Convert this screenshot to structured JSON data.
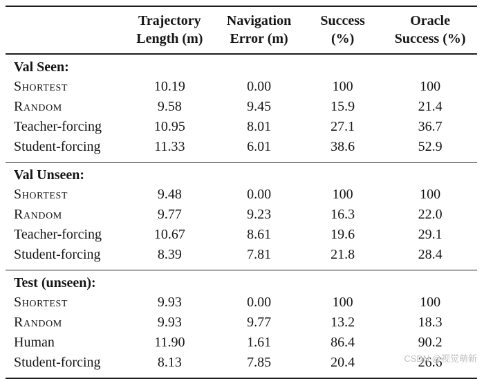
{
  "watermark": "CSDN @视觉萌新",
  "colors": {
    "background": "#ffffff",
    "text": "#151515",
    "rule": "#1c1c1c",
    "watermark": "#bfbfbf"
  },
  "table": {
    "columns": [
      {
        "line1": "Trajectory",
        "line2": "Length (m)"
      },
      {
        "line1": "Navigation",
        "line2": "Error (m)"
      },
      {
        "line1": "Success",
        "line2": "(%)"
      },
      {
        "line1": "Oracle",
        "line2": "Success (%)"
      }
    ],
    "sections": [
      {
        "title": "Val Seen:",
        "rows": [
          {
            "label": "Shortest",
            "smallcaps": true,
            "values": [
              "10.19",
              "0.00",
              "100",
              "100"
            ]
          },
          {
            "label": "Random",
            "smallcaps": true,
            "values": [
              "9.58",
              "9.45",
              "15.9",
              "21.4"
            ]
          },
          {
            "label": "Teacher-forcing",
            "smallcaps": false,
            "values": [
              "10.95",
              "8.01",
              "27.1",
              "36.7"
            ]
          },
          {
            "label": "Student-forcing",
            "smallcaps": false,
            "values": [
              "11.33",
              "6.01",
              "38.6",
              "52.9"
            ]
          }
        ]
      },
      {
        "title": "Val Unseen:",
        "rows": [
          {
            "label": "Shortest",
            "smallcaps": true,
            "values": [
              "9.48",
              "0.00",
              "100",
              "100"
            ]
          },
          {
            "label": "Random",
            "smallcaps": true,
            "values": [
              "9.77",
              "9.23",
              "16.3",
              "22.0"
            ]
          },
          {
            "label": "Teacher-forcing",
            "smallcaps": false,
            "values": [
              "10.67",
              "8.61",
              "19.6",
              "29.1"
            ]
          },
          {
            "label": "Student-forcing",
            "smallcaps": false,
            "values": [
              "8.39",
              "7.81",
              "21.8",
              "28.4"
            ]
          }
        ]
      },
      {
        "title": "Test (unseen):",
        "rows": [
          {
            "label": "Shortest",
            "smallcaps": true,
            "values": [
              "9.93",
              "0.00",
              "100",
              "100"
            ]
          },
          {
            "label": "Random",
            "smallcaps": true,
            "values": [
              "9.93",
              "9.77",
              "13.2",
              "18.3"
            ]
          },
          {
            "label": "Human",
            "smallcaps": false,
            "values": [
              "11.90",
              "1.61",
              "86.4",
              "90.2"
            ]
          },
          {
            "label": "Student-forcing",
            "smallcaps": false,
            "values": [
              "8.13",
              "7.85",
              "20.4",
              "26.6"
            ]
          }
        ]
      }
    ]
  }
}
